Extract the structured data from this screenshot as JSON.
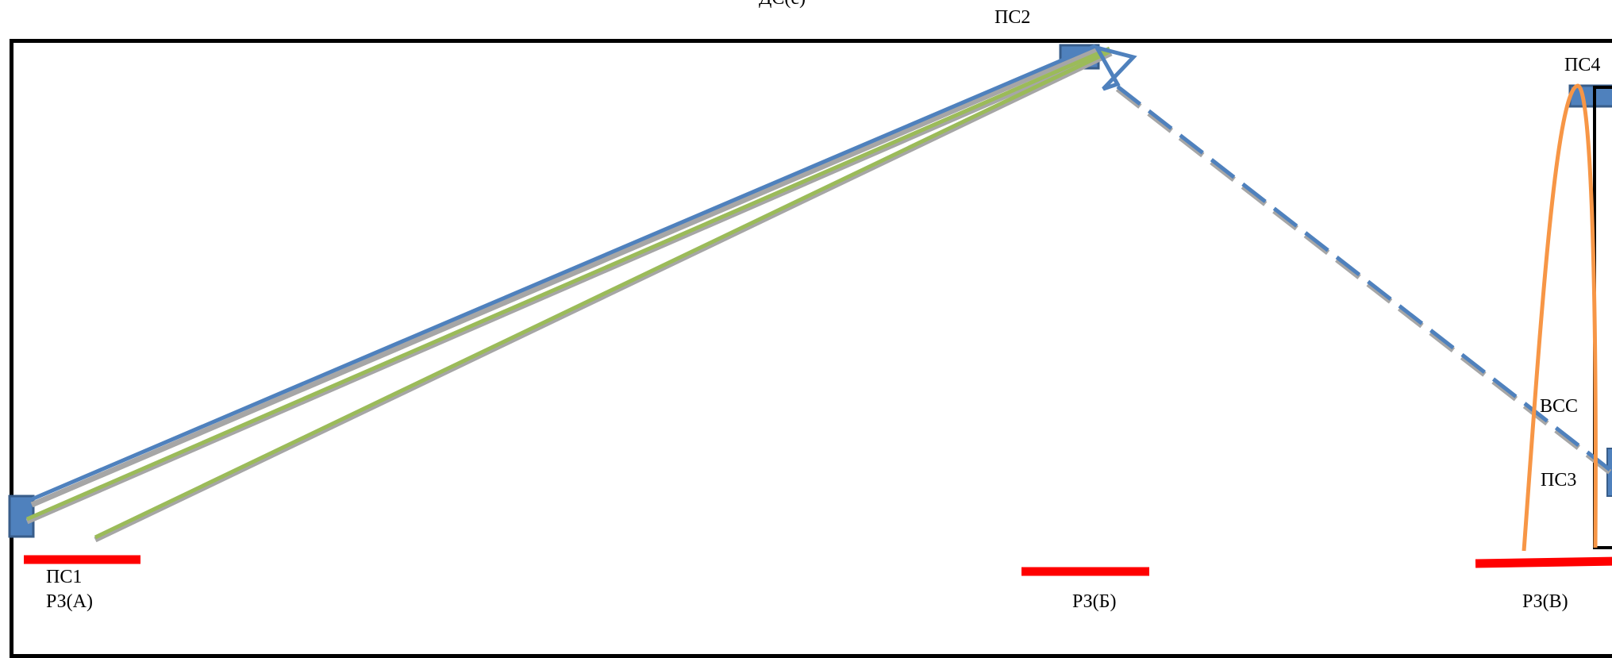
{
  "labels": {
    "top_cut": "ДС(с)",
    "ps2": "ПС2",
    "ps4": "ПС4",
    "vss": "ВСС",
    "ps3": "ПС3",
    "ps1": "ПС1",
    "rz_a": "РЗ(А)",
    "rz_b": "РЗ(Б)",
    "rz_v": "РЗ(В)"
  },
  "colors": {
    "frame": "#000000",
    "substation_fill": "#4f81bd",
    "substation_stroke": "#385d8a",
    "line_blue": "#4f81bd",
    "line_green": "#9bbb59",
    "line_gray": "#a6a6a6",
    "line_orange": "#f79646",
    "bar_red": "#ff0000"
  },
  "icons": {
    "ps2_marker": "bow-tie-icon"
  }
}
